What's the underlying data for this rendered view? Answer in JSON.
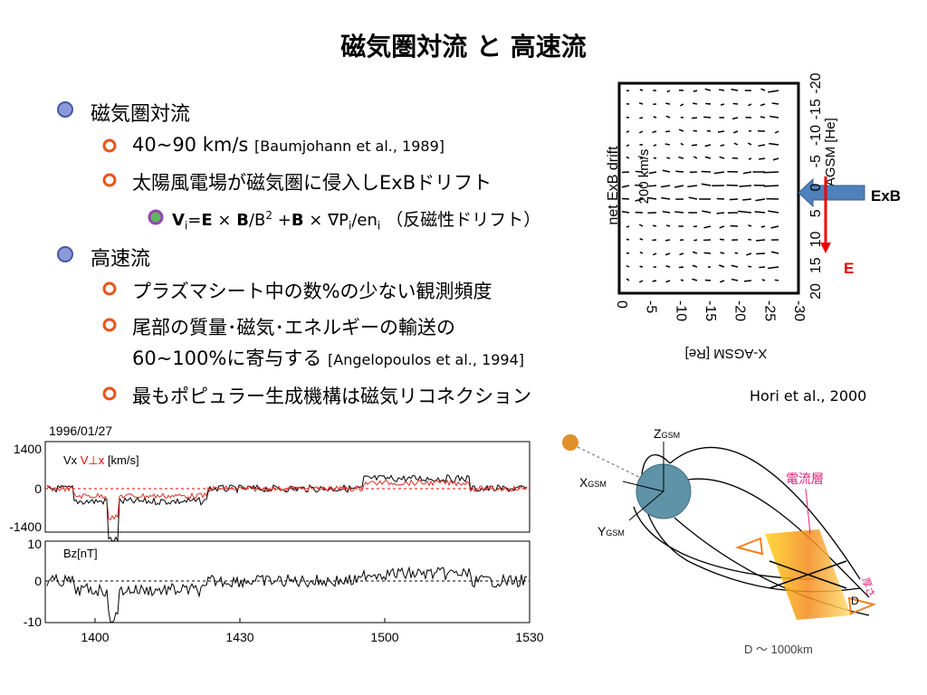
{
  "header": {
    "title": "磁気圏対流 と 高速流"
  },
  "bullets": [
    {
      "text": "磁気圏対流",
      "items": [
        {
          "text": "40~90 km/s",
          "ref": "[Baumjohann et al., 1989]"
        },
        {
          "text": "太陽風電場が磁気圏に侵入しExBドリフト",
          "formula": [
            "V",
            "i",
            "=",
            "E",
            " × ",
            "B",
            "/B",
            "2",
            " +",
            "B",
            " × ∇P",
            "i",
            "/en",
            "i",
            " （反磁性ドリフト）"
          ]
        }
      ]
    },
    {
      "text": "高速流",
      "items": [
        {
          "text": "プラズマシート中の数%の少ない観測頻度"
        },
        {
          "text": "尾部の質量･磁気･エネルギーの輸送の",
          "text2": "60~100%に寄与する",
          "ref": "[Angelopoulos et al., 1994]"
        },
        {
          "text": "最もポピュラー生成機構は磁気リコネクション"
        }
      ]
    }
  ],
  "drift_figure": {
    "ylabel": "net ExB drift",
    "scale": "200 km/s",
    "yaxis": "Y-AGSM [He]",
    "yticks": [
      "20",
      "15",
      "10",
      "5",
      "0",
      "-5",
      "-10",
      "-15",
      "-20"
    ],
    "xticks": [
      "0",
      "-5",
      "-10",
      "-15",
      "-20",
      "-25",
      "-30"
    ],
    "xaxis": "X-AGSM [Re]",
    "arrow_exb": "ExB",
    "arrow_e": "E",
    "credit": "Hori et al., 2000"
  },
  "timeseries": {
    "date": "1996/01/27",
    "panel1": {
      "label1": "Vx",
      "label2": "V⊥x",
      "unit": "[km/s]",
      "yticks": [
        "1400",
        "0",
        "-1400"
      ]
    },
    "panel2": {
      "label": "Bz[nT]",
      "yticks": [
        "10",
        "0",
        "-10"
      ]
    },
    "xticks": [
      "1400",
      "1430",
      "1500",
      "1530"
    ]
  },
  "diagram": {
    "z": "Z",
    "x": "X",
    "y": "Y",
    "sub": "GSM",
    "sheet": "電流層",
    "d": "D",
    "thickness": "厚さ",
    "caption": "D ～ 1000km"
  }
}
